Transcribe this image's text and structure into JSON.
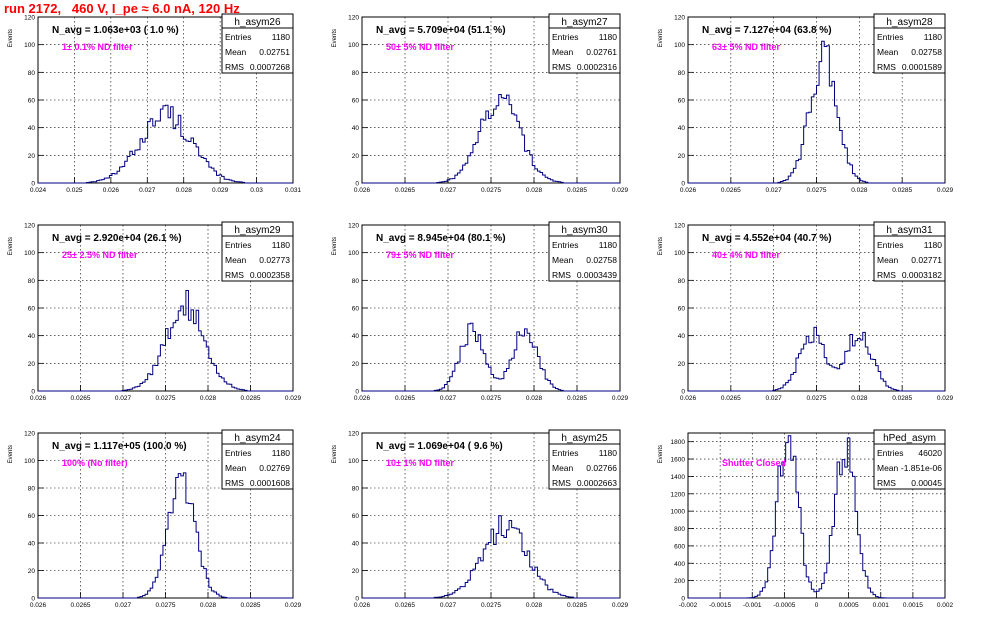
{
  "page": {
    "title": "run 2172,   460 V, I_pe ≈ 6.0 nA, 120 Hz"
  },
  "stats_labels": {
    "entries": "Entries",
    "mean": "Mean",
    "rms": "RMS"
  },
  "colors": {
    "histogram": "#000080",
    "annotation": "#ff00ff",
    "title": "#ff0000",
    "grid": "#000000"
  },
  "chart_data": [
    {
      "type": "histogram",
      "name": "h_asym26",
      "navg": "N_avg = 1.063e+03 ( 1.0 %)",
      "filter": "1± 0.1% ND filter",
      "entries": "1180",
      "mean": "0.02751",
      "rms": "0.0007268",
      "ylabel": "Events",
      "xlabel": "",
      "xlim": [
        0.024,
        0.031
      ],
      "ylim": [
        0,
        120
      ],
      "xticks": [
        "0.024",
        "0.025",
        "0.026",
        "0.027",
        "0.028",
        "0.029",
        "0.03",
        "0.031"
      ],
      "yticks": [
        "0",
        "20",
        "40",
        "60",
        "80",
        "100",
        "120"
      ],
      "peaks": [
        {
          "mu": 0.02751,
          "sigma": 0.0007,
          "h": 50
        }
      ],
      "grid": true
    },
    {
      "type": "histogram",
      "name": "h_asym27",
      "navg": "N_avg = 5.709e+04 (51.1 %)",
      "filter": "50± 5% ND filter",
      "entries": "1180",
      "mean": "0.02761",
      "rms": "0.0002316",
      "ylabel": "Events",
      "xlabel": "",
      "xlim": [
        0.026,
        0.029
      ],
      "ylim": [
        0,
        120
      ],
      "xticks": [
        "0.026",
        "0.0265",
        "0.027",
        "0.0275",
        "0.028",
        "0.0285",
        "0.029"
      ],
      "yticks": [
        "0",
        "20",
        "40",
        "60",
        "80",
        "100",
        "120"
      ],
      "peaks": [
        {
          "mu": 0.02761,
          "sigma": 0.00023,
          "h": 62
        }
      ],
      "grid": true
    },
    {
      "type": "histogram",
      "name": "h_asym28",
      "navg": "N_avg = 7.127e+04 (63.8 %)",
      "filter": "63± 5% ND filter",
      "entries": "1180",
      "mean": "0.02758",
      "rms": "0.0001589",
      "ylabel": "Events",
      "xlabel": "",
      "xlim": [
        0.026,
        0.029
      ],
      "ylim": [
        0,
        120
      ],
      "xticks": [
        "0.026",
        "0.0265",
        "0.027",
        "0.0275",
        "0.028",
        "0.0285",
        "0.029"
      ],
      "yticks": [
        "0",
        "20",
        "40",
        "60",
        "80",
        "100",
        "120"
      ],
      "peaks": [
        {
          "mu": 0.02758,
          "sigma": 0.00016,
          "h": 90
        }
      ],
      "grid": true
    },
    {
      "type": "histogram",
      "name": "h_asym29",
      "navg": "N_avg = 2.920e+04 (26.1 %)",
      "filter": "25± 2.5% ND filter",
      "entries": "1180",
      "mean": "0.02773",
      "rms": "0.0002358",
      "ylabel": "Events",
      "xlabel": "",
      "xlim": [
        0.026,
        0.029
      ],
      "ylim": [
        0,
        120
      ],
      "xticks": [
        "0.026",
        "0.0265",
        "0.027",
        "0.0275",
        "0.028",
        "0.0285",
        "0.029"
      ],
      "yticks": [
        "0",
        "20",
        "40",
        "60",
        "80",
        "100",
        "120"
      ],
      "peaks": [
        {
          "mu": 0.02773,
          "sigma": 0.00023,
          "h": 62
        }
      ],
      "grid": true
    },
    {
      "type": "histogram",
      "name": "h_asym30",
      "navg": "N_avg = 8.945e+04 (80.1 %)",
      "filter": "79± 5% ND filter",
      "entries": "1180",
      "mean": "0.02758",
      "rms": "0.0003439",
      "ylabel": "Events",
      "xlabel": "",
      "xlim": [
        0.026,
        0.029
      ],
      "ylim": [
        0,
        120
      ],
      "xticks": [
        "0.026",
        "0.0265",
        "0.027",
        "0.0275",
        "0.028",
        "0.0285",
        "0.029"
      ],
      "yticks": [
        "0",
        "20",
        "40",
        "60",
        "80",
        "100",
        "120"
      ],
      "peaks": [
        {
          "mu": 0.02728,
          "sigma": 0.00014,
          "h": 44
        },
        {
          "mu": 0.0279,
          "sigma": 0.00014,
          "h": 46
        }
      ],
      "grid": true
    },
    {
      "type": "histogram",
      "name": "h_asym31",
      "navg": "N_avg = 4.552e+04 (40.7 %)",
      "filter": "40± 4% ND filter",
      "entries": "1180",
      "mean": "0.02771",
      "rms": "0.0003182",
      "ylabel": "Events",
      "xlabel": "",
      "xlim": [
        0.026,
        0.029
      ],
      "ylim": [
        0,
        120
      ],
      "xticks": [
        "0.026",
        "0.0265",
        "0.027",
        "0.0275",
        "0.028",
        "0.0285",
        "0.029"
      ],
      "yticks": [
        "0",
        "20",
        "40",
        "60",
        "80",
        "100",
        "120"
      ],
      "peaks": [
        {
          "mu": 0.02745,
          "sigma": 0.00015,
          "h": 40
        },
        {
          "mu": 0.028,
          "sigma": 0.00015,
          "h": 42
        }
      ],
      "grid": true
    },
    {
      "type": "histogram",
      "name": "h_asym24",
      "navg": "N_avg = 1.117e+05 (100.0 %)",
      "filter": "100% (No filter)",
      "entries": "1180",
      "mean": "0.02769",
      "rms": "0.0001608",
      "ylabel": "Events",
      "xlabel": "",
      "xlim": [
        0.026,
        0.029
      ],
      "ylim": [
        0,
        120
      ],
      "xticks": [
        "0.026",
        "0.0265",
        "0.027",
        "0.0275",
        "0.028",
        "0.0285",
        "0.029"
      ],
      "yticks": [
        "0",
        "20",
        "40",
        "60",
        "80",
        "100",
        "120"
      ],
      "peaks": [
        {
          "mu": 0.02769,
          "sigma": 0.00016,
          "h": 82
        }
      ],
      "grid": true
    },
    {
      "type": "histogram",
      "name": "h_asym25",
      "navg": "N_avg = 1.069e+04 ( 9.6 %)",
      "filter": "10± 1% ND filter",
      "entries": "1180",
      "mean": "0.02766",
      "rms": "0.0002663",
      "ylabel": "Events",
      "xlabel": "",
      "xlim": [
        0.026,
        0.029
      ],
      "ylim": [
        0,
        120
      ],
      "xticks": [
        "0.026",
        "0.0265",
        "0.027",
        "0.0275",
        "0.028",
        "0.0285",
        "0.029"
      ],
      "yticks": [
        "0",
        "20",
        "40",
        "60",
        "80",
        "100",
        "120"
      ],
      "peaks": [
        {
          "mu": 0.02766,
          "sigma": 0.00026,
          "h": 52
        }
      ],
      "grid": true
    },
    {
      "type": "histogram",
      "name": "hPed_asym",
      "navg": "",
      "filter": "Shutter Closed",
      "entries": "46020",
      "mean": "-1.851e-06",
      "rms": "0.00045",
      "ylabel": "Events",
      "xlabel": "",
      "xlim": [
        -0.002,
        0.002
      ],
      "ylim": [
        0,
        1900
      ],
      "xticks": [
        "-0.002",
        "-0.0015",
        "-0.001",
        "-0.0005",
        "0",
        "0.0005",
        "0.001",
        "0.0015",
        "0.002"
      ],
      "yticks": [
        "0",
        "200",
        "400",
        "600",
        "800",
        "1000",
        "1200",
        "1400",
        "1600",
        "1800"
      ],
      "peaks": [
        {
          "mu": -0.00045,
          "sigma": 0.00016,
          "h": 1800
        },
        {
          "mu": 0.00045,
          "sigma": 0.00016,
          "h": 1800
        }
      ],
      "grid": true
    }
  ]
}
